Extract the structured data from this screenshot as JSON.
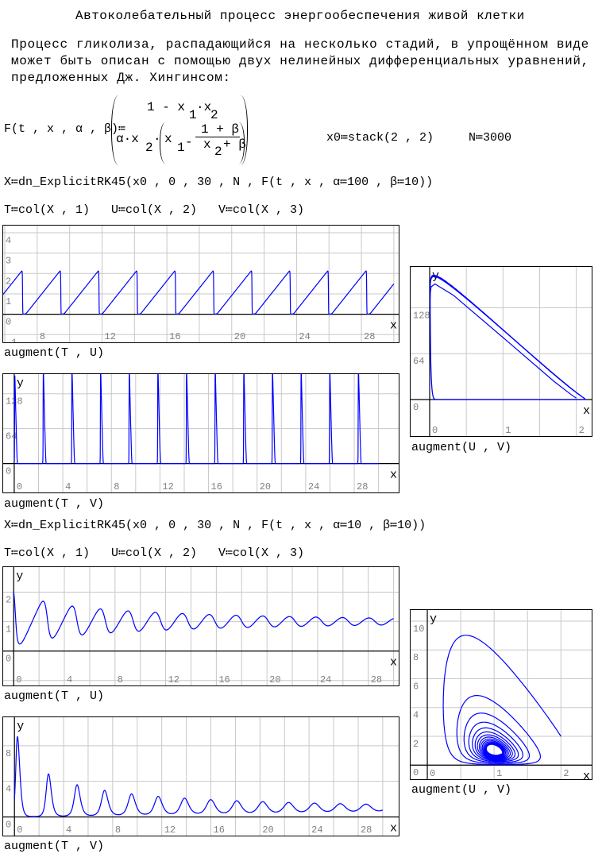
{
  "title": "Автоколебательный процесс энергообеспечения живой клетки",
  "intro": [
    "Процесс гликолиза, распадающийся на несколько стадий, в упрощённом виде",
    "может быть описан с помощью двух нелинейных дифференциальных уравнений,",
    "предложенных Дж. Хингинсом:"
  ],
  "definition": {
    "lhs": "F(t , x , α , β)≔",
    "row1": {
      "a": "1 - x",
      "sub1": "1",
      "b": "·x",
      "sub2": "2"
    },
    "row2": {
      "a": "α·x",
      "sub1": "2",
      "dot": "·",
      "x": "x",
      "sub2": "1",
      "minus": "-",
      "num": "1 + β",
      "den_x": "x",
      "den_sub": "2",
      "den_rest": "+ β"
    }
  },
  "init": {
    "x0": "x0≔stack(2 , 2)",
    "n": "N≔3000"
  },
  "block1": {
    "solve": "X≔dn_ExplicitRK45(x0 , 0 , 30 , N , F(t , x , α≔100 , β≔10))",
    "cols": [
      "T≔col(X , 1)",
      "U≔col(X , 2)",
      "V≔col(X , 3)"
    ]
  },
  "block2": {
    "solve": "X≔dn_ExplicitRK45(x0 , 0 , 30 , N , F(t , x , α≔10 , β≔10))",
    "cols": [
      "T≔col(X , 1)",
      "U≔col(X , 2)",
      "V≔col(X , 3)"
    ]
  },
  "model": {
    "x0": [
      2,
      2
    ],
    "t_range": [
      0,
      30
    ],
    "N": 3000
  },
  "colors": {
    "curve": "#0000ff",
    "grid": "#c8c8c8",
    "tick_label": "#808080",
    "axis": "#000000"
  },
  "chart_data": [
    {
      "type": "line",
      "caption": "augment(T , U)",
      "alpha": 100,
      "beta": 10,
      "x_var": "T",
      "y_var": "U",
      "xlim": [
        5.9,
        30.3
      ],
      "ylim": [
        -1.38,
        4.35
      ],
      "grid": true,
      "xgrid_step": 2,
      "ygrid_step": 1,
      "xticks": [
        "8",
        "12",
        "16",
        "20",
        "24",
        "28"
      ],
      "yticks": [
        "-1",
        "0",
        "1",
        "2",
        "3",
        "4"
      ],
      "xlabel": "x",
      "ylabel": ""
    },
    {
      "type": "line",
      "caption": "augment(T , V)",
      "alpha": 100,
      "beta": 10,
      "x_var": "T",
      "y_var": "V",
      "xlim": [
        -0.91,
        31.66
      ],
      "ylim": [
        -53,
        164
      ],
      "grid": true,
      "xgrid_step": 2,
      "ygrid_step": 64,
      "xticks": [
        "0",
        "4",
        "8",
        "12",
        "16",
        "20",
        "24",
        "28"
      ],
      "yticks": [
        "0",
        "64",
        "128"
      ],
      "xlabel": "x",
      "ylabel": "y"
    },
    {
      "type": "line",
      "caption": "augment(U , V)",
      "alpha": 100,
      "beta": 10,
      "x_var": "U",
      "y_var": "V",
      "xlim": [
        -0.26,
        2.21
      ],
      "ylim": [
        -51,
        185
      ],
      "grid": true,
      "xgrid_step": 0.5,
      "ygrid_step": 64,
      "xticks": [
        "0",
        "1",
        "2"
      ],
      "yticks": [
        "0",
        "64",
        "128"
      ],
      "xlabel": "x",
      "ylabel": "y"
    },
    {
      "type": "line",
      "caption": "augment(T , U)",
      "alpha": 10,
      "beta": 10,
      "x_var": "T",
      "y_var": "U",
      "xlim": [
        -0.83,
        30.4
      ],
      "ylim": [
        -1.17,
        2.85
      ],
      "grid": true,
      "xgrid_step": 2,
      "ygrid_step": 1,
      "xticks": [
        "0",
        "4",
        "8",
        "12",
        "16",
        "20",
        "24",
        "28"
      ],
      "yticks": [
        "0",
        "1",
        "2"
      ],
      "xlabel": "x",
      "ylabel": "y"
    },
    {
      "type": "line",
      "caption": "augment(T , V)",
      "alpha": 10,
      "beta": 10,
      "x_var": "T",
      "y_var": "V",
      "xlim": [
        -0.92,
        31.3
      ],
      "ylim": [
        -2.1,
        11.2
      ],
      "grid": true,
      "xgrid_step": 2,
      "ygrid_step": 4,
      "xticks": [
        "0",
        "4",
        "8",
        "12",
        "16",
        "20",
        "24",
        "28"
      ],
      "yticks": [
        "0",
        "4",
        "8"
      ],
      "xlabel": "x",
      "ylabel": "y"
    },
    {
      "type": "line",
      "caption": "augment(U , V)",
      "alpha": 10,
      "beta": 10,
      "x_var": "U",
      "y_var": "V",
      "xlim": [
        -0.25,
        2.46
      ],
      "ylim": [
        -0.98,
        10.77
      ],
      "grid": true,
      "xgrid_step": 0.5,
      "ygrid_step": 2,
      "xticks": [
        "0",
        "1",
        "2"
      ],
      "yticks": [
        "0",
        "2",
        "4",
        "6",
        "8",
        "10"
      ],
      "xlabel": "x",
      "ylabel": "y"
    }
  ]
}
